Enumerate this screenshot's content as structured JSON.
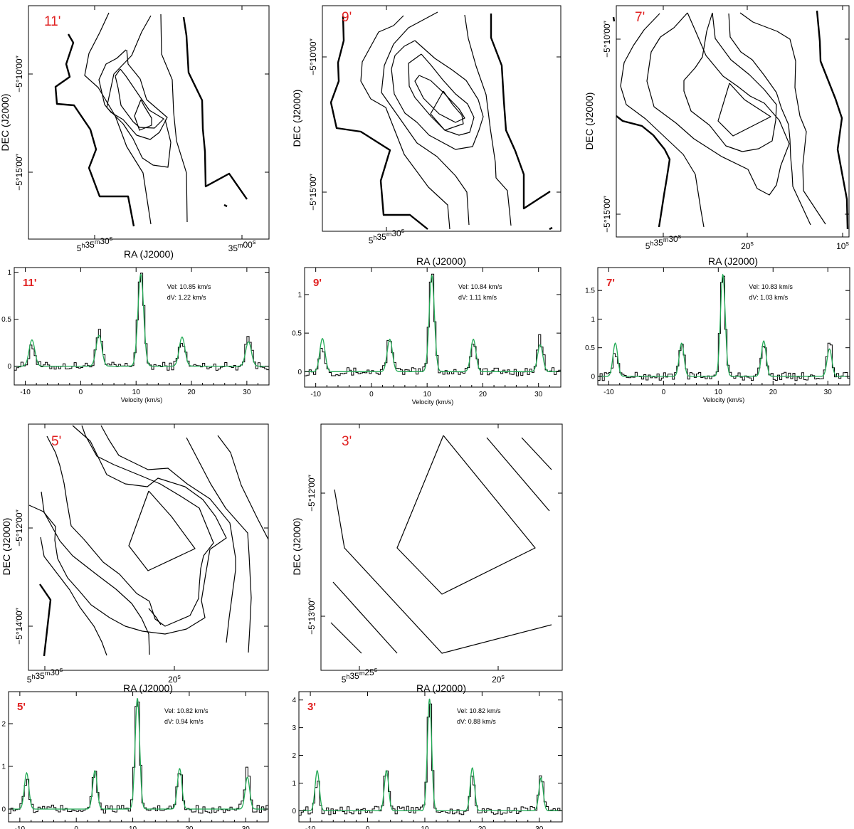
{
  "colors": {
    "label": "#e02020",
    "fit": "#22aa55",
    "data": "#000000",
    "frame": "#000000"
  },
  "maps": [
    {
      "label": "11'",
      "xlabel": "RA (J2000)",
      "ylabel": "DEC (J2000)",
      "xticks": [
        {
          "main": "5",
          "sup1": "h",
          "mid": "35",
          "sup2": "m",
          "end": "30",
          "sup3": "s"
        },
        {
          "main": "",
          "sup1": "",
          "mid": "35",
          "sup2": "m",
          "end": "00",
          "sup3": "s"
        }
      ],
      "yticks": [
        "−5°10′00″",
        "−5°15′00″"
      ]
    },
    {
      "label": "9'",
      "xlabel": "RA (J2000)",
      "ylabel": "DEC (J2000)",
      "xticks": [
        {
          "main": "5",
          "sup1": "h",
          "mid": "35",
          "sup2": "m",
          "end": "30",
          "sup3": "s"
        }
      ],
      "yticks": [
        "−5°10′00″",
        "−5°15′00″"
      ]
    },
    {
      "label": "7'",
      "xlabel": "RA (J2000)",
      "ylabel": "DEC (J2000)",
      "xticks": [
        {
          "main": "5",
          "sup1": "h",
          "mid": "35",
          "sup2": "m",
          "end": "30",
          "sup3": "s"
        },
        {
          "main": "",
          "sup1": "",
          "mid": "",
          "sup2": "",
          "end": "20",
          "sup3": "s"
        },
        {
          "main": "",
          "sup1": "",
          "mid": "",
          "sup2": "",
          "end": "10",
          "sup3": "s"
        }
      ],
      "yticks": [
        "−5°10′00″",
        "−5°15′00″"
      ]
    },
    {
      "label": "5'",
      "xlabel": "RA (J2000)",
      "ylabel": "DEC (J2000)",
      "xticks": [
        {
          "main": "5",
          "sup1": "h",
          "mid": "35",
          "sup2": "m",
          "end": "30",
          "sup3": "s"
        },
        {
          "main": "",
          "sup1": "",
          "mid": "",
          "sup2": "",
          "end": "20",
          "sup3": "s"
        }
      ],
      "yticks": [
        "−5°12′00″",
        "−5°14′00″"
      ]
    },
    {
      "label": "3'",
      "xlabel": "RA (J2000)",
      "ylabel": "DEC (J2000)",
      "xticks": [
        {
          "main": "5",
          "sup1": "h",
          "mid": "35",
          "sup2": "m",
          "end": "25",
          "sup3": "s"
        },
        {
          "main": "",
          "sup1": "",
          "mid": "",
          "sup2": "",
          "end": "20",
          "sup3": "s"
        }
      ],
      "yticks": [
        "−5°12′00″",
        "−5°13′00″"
      ]
    }
  ],
  "chart_data": [
    {
      "type": "line",
      "label": "11'",
      "xlabel": "Velocity (km/s)",
      "ylabel": "",
      "xlim": [
        -12,
        34
      ],
      "ylim": [
        -0.2,
        1.05
      ],
      "xticks": [
        -10,
        0,
        10,
        20,
        30
      ],
      "yticks": [
        0,
        0.5,
        1
      ],
      "vel_text": "Vel:  10.85  km/s",
      "dv_text": "dV:    1.22  km/s",
      "vel": 10.85,
      "dv": 1.22,
      "components": [
        {
          "v": -8.8,
          "fit_amp": 0.28,
          "obs_amp": 0.22
        },
        {
          "v": 3.3,
          "fit_amp": 0.33,
          "obs_amp": 0.36
        },
        {
          "v": 10.85,
          "fit_amp": 0.98,
          "obs_amp": 1.01
        },
        {
          "v": 18.3,
          "fit_amp": 0.31,
          "obs_amp": 0.28
        },
        {
          "v": 30.3,
          "fit_amp": 0.26,
          "obs_amp": 0.33
        }
      ]
    },
    {
      "type": "line",
      "label": "9'",
      "xlabel": "Velocity (km/s)",
      "ylabel": "",
      "xlim": [
        -12,
        34
      ],
      "ylim": [
        -0.2,
        1.35
      ],
      "xticks": [
        -10,
        0,
        10,
        20,
        30
      ],
      "yticks": [
        0,
        0.5,
        1
      ],
      "vel_text": "Vel:  10.84  km/s",
      "dv_text": "dV:    1.11  km/s",
      "vel": 10.84,
      "dv": 1.11,
      "components": [
        {
          "v": -8.8,
          "fit_amp": 0.43,
          "obs_amp": 0.32
        },
        {
          "v": 3.3,
          "fit_amp": 0.42,
          "obs_amp": 0.45
        },
        {
          "v": 10.84,
          "fit_amp": 1.25,
          "obs_amp": 1.3
        },
        {
          "v": 18.3,
          "fit_amp": 0.42,
          "obs_amp": 0.4
        },
        {
          "v": 30.3,
          "fit_amp": 0.35,
          "obs_amp": 0.45
        }
      ]
    },
    {
      "type": "line",
      "label": "7'",
      "xlabel": "Velocity (km/s)",
      "ylabel": "",
      "xlim": [
        -12,
        34
      ],
      "ylim": [
        -0.15,
        1.9
      ],
      "xticks": [
        -10,
        0,
        10,
        20,
        30
      ],
      "yticks": [
        0,
        0.5,
        1,
        1.5
      ],
      "vel_text": "Vel:  10.83  km/s",
      "dv_text": "dV:    1.03  km/s",
      "vel": 10.83,
      "dv": 1.03,
      "components": [
        {
          "v": -8.8,
          "fit_amp": 0.58,
          "obs_amp": 0.45
        },
        {
          "v": 3.3,
          "fit_amp": 0.58,
          "obs_amp": 0.62
        },
        {
          "v": 10.83,
          "fit_amp": 1.78,
          "obs_amp": 1.82
        },
        {
          "v": 18.3,
          "fit_amp": 0.62,
          "obs_amp": 0.58
        },
        {
          "v": 30.3,
          "fit_amp": 0.48,
          "obs_amp": 0.62
        }
      ]
    },
    {
      "type": "line",
      "label": "5'",
      "xlabel": "Velocity (km/s)",
      "ylabel": "",
      "xlim": [
        -12,
        34
      ],
      "ylim": [
        -0.3,
        2.75
      ],
      "xticks": [
        -10,
        0,
        10,
        20,
        30
      ],
      "yticks": [
        0,
        1,
        2
      ],
      "vel_text": "Vel:  10.82  km/s",
      "dv_text": "dV:    0.94  km/s",
      "vel": 10.82,
      "dv": 0.94,
      "components": [
        {
          "v": -8.8,
          "fit_amp": 0.85,
          "obs_amp": 0.68
        },
        {
          "v": 3.3,
          "fit_amp": 0.9,
          "obs_amp": 0.95
        },
        {
          "v": 10.82,
          "fit_amp": 2.6,
          "obs_amp": 2.65
        },
        {
          "v": 18.3,
          "fit_amp": 0.95,
          "obs_amp": 0.9
        },
        {
          "v": 30.3,
          "fit_amp": 0.75,
          "obs_amp": 0.95
        }
      ]
    },
    {
      "type": "line",
      "label": "3'",
      "xlabel": "Velocity (km/s)",
      "ylabel": "",
      "xlim": [
        -12,
        34
      ],
      "ylim": [
        -0.4,
        4.3
      ],
      "xticks": [
        -10,
        0,
        10,
        20,
        30
      ],
      "yticks": [
        0,
        1,
        2,
        3,
        4
      ],
      "vel_text": "Vel:  10.82  km/s",
      "dv_text": "dV:    0.88  km/s",
      "vel": 10.82,
      "dv": 0.88,
      "components": [
        {
          "v": -8.8,
          "fit_amp": 1.45,
          "obs_amp": 1.1
        },
        {
          "v": 3.3,
          "fit_amp": 1.45,
          "obs_amp": 1.5
        },
        {
          "v": 10.82,
          "fit_amp": 4.05,
          "obs_amp": 4.1
        },
        {
          "v": 18.3,
          "fit_amp": 1.55,
          "obs_amp": 1.35
        },
        {
          "v": 30.3,
          "fit_amp": 1.2,
          "obs_amp": 1.4
        }
      ]
    }
  ]
}
